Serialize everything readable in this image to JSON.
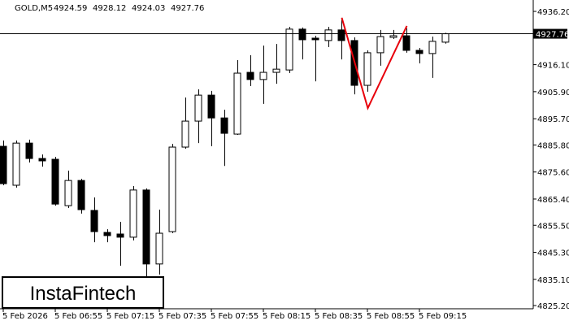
{
  "chart_data": {
    "type": "candlestick",
    "title": "GOLD,M5",
    "header_values": [
      4924.59,
      4928.12,
      4924.03,
      4927.76
    ],
    "watermark": "InstaFintech",
    "categories": [
      "5 Feb 2026",
      null,
      null,
      null,
      "5 Feb 06:55",
      null,
      null,
      null,
      "5 Feb 07:15",
      null,
      null,
      null,
      "5 Feb 07:35",
      null,
      null,
      null,
      "5 Feb 07:55",
      null,
      null,
      null,
      "5 Feb 08:15",
      null,
      null,
      null,
      "5 Feb 08:35",
      null,
      null,
      null,
      "5 Feb 08:55",
      null,
      null,
      null,
      "5 Feb 09:15",
      null,
      null
    ],
    "open": [
      4885.3,
      4870.6,
      4886.5,
      4880.7,
      4880.4,
      4862.9,
      4872.4,
      4861.1,
      4852.8,
      4852.2,
      4851.0,
      4868.8,
      4840.9,
      4853.1,
      4885.0,
      4894.8,
      4904.6,
      4896.0,
      4889.9,
      4913.2,
      4910.5,
      4913.2,
      4914.1,
      4929.5,
      4926.1,
      4925.2,
      4929.2,
      4925.2,
      4908.3,
      4920.6,
      4926.4,
      4927.0,
      4921.5,
      4920.3,
      4924.59
    ],
    "high": [
      4887.5,
      4887.5,
      4887.8,
      4882.2,
      4881.3,
      4876.1,
      4873.0,
      4866.0,
      4854.0,
      4856.8,
      4870.3,
      4869.4,
      4861.4,
      4886.2,
      4903.7,
      4906.8,
      4906.2,
      4899.1,
      4917.8,
      4919.7,
      4923.3,
      4923.9,
      4930.4,
      4930.1,
      4927.0,
      4930.4,
      4933.8,
      4926.4,
      4921.5,
      4929.2,
      4929.2,
      4929.8,
      4922.4,
      4926.7,
      4928.12
    ],
    "low": [
      4870.6,
      4869.7,
      4879.2,
      4877.6,
      4862.9,
      4862.0,
      4859.9,
      4849.1,
      4849.1,
      4840.2,
      4849.8,
      4835.3,
      4836.9,
      4852.5,
      4884.4,
      4886.5,
      4885.3,
      4877.9,
      4889.6,
      4908.0,
      4901.3,
      4908.9,
      4912.9,
      4918.1,
      4909.8,
      4922.7,
      4918.1,
      4904.9,
      4905.9,
      4915.7,
      4925.8,
      4920.6,
      4916.6,
      4911.1,
      4924.03
    ],
    "close": [
      4871.2,
      4886.5,
      4880.7,
      4879.8,
      4863.5,
      4872.4,
      4861.4,
      4853.1,
      4851.6,
      4851.0,
      4868.8,
      4840.9,
      4852.5,
      4885.0,
      4894.8,
      4904.6,
      4896.0,
      4890.2,
      4912.9,
      4910.5,
      4913.2,
      4914.4,
      4929.5,
      4925.5,
      4925.5,
      4929.2,
      4925.2,
      4908.3,
      4920.6,
      4926.7,
      4927.0,
      4921.5,
      4920.3,
      4924.9,
      4927.76
    ],
    "bull_color": "#ffffff",
    "bear_color": "#000000",
    "last_price": 4927.76,
    "pattern": {
      "color": "#e8000b",
      "x": [
        26,
        28,
        31
      ],
      "values": [
        4933.8,
        4899.7,
        4930.7
      ]
    },
    "ylim": [
      4824.0,
      4940.5
    ],
    "yticks": [
      {
        "value": 4936.2,
        "label": "4936.20"
      },
      {
        "value": 4916.1,
        "label": "4916.10"
      },
      {
        "value": 4905.9,
        "label": "4905.90"
      },
      {
        "value": 4895.7,
        "label": "4895.70"
      },
      {
        "value": 4885.8,
        "label": "4885.80"
      },
      {
        "value": 4875.6,
        "label": "4875.60"
      },
      {
        "value": 4865.4,
        "label": "4865.40"
      },
      {
        "value": 4855.5,
        "label": "4855.50"
      },
      {
        "value": 4845.3,
        "label": "4845.30"
      },
      {
        "value": 4835.1,
        "label": "4835.10"
      },
      {
        "value": 4825.2,
        "label": "4825.20"
      }
    ],
    "grid": false
  }
}
